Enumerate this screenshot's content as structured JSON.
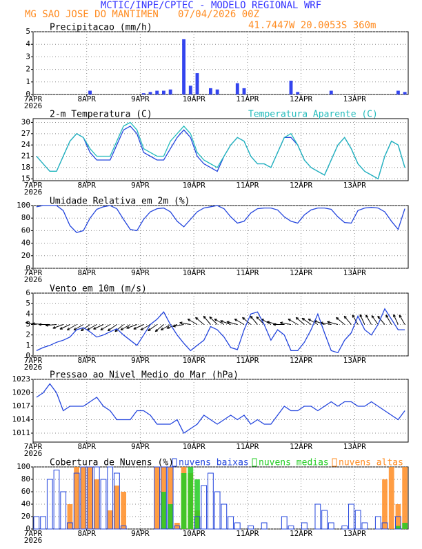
{
  "header": {
    "title": "MCTIC/INPE/CPTEC - MODELO REGIONAL WRF",
    "location": "MG SAO JOSE DO MANTIMEN",
    "run": "07/04/2026 00Z",
    "coords": "41.7447W 20.0053S 360m"
  },
  "chart_data": [
    {
      "type": "bar",
      "title": "Precipitacao (mm/h)",
      "year": "2026",
      "grid": true,
      "color": "#3344ee",
      "categories": [
        "7APR",
        null,
        null,
        null,
        null,
        null,
        null,
        null,
        "8APR",
        null,
        null,
        null,
        null,
        null,
        null,
        null,
        "9APR",
        null,
        null,
        null,
        null,
        null,
        null,
        null,
        "10APR",
        null,
        null,
        null,
        null,
        null,
        null,
        null,
        "11APR",
        null,
        null,
        null,
        null,
        null,
        null,
        null,
        "12APR",
        null,
        null,
        null,
        null,
        null,
        null,
        null,
        "13APR",
        null,
        null,
        null,
        null,
        null,
        null,
        null
      ],
      "values": [
        0,
        0,
        0,
        0,
        0,
        0,
        0,
        0,
        0.3,
        0,
        0,
        0,
        0,
        0,
        0,
        0,
        0.1,
        0.2,
        0.3,
        0.3,
        0.4,
        0,
        4.4,
        0.7,
        1.7,
        0,
        0.5,
        0.4,
        0,
        0,
        0.9,
        0.5,
        0,
        0,
        0,
        0,
        0,
        0,
        1.1,
        0.2,
        0,
        0,
        0,
        0,
        0.3,
        0,
        0,
        0,
        0,
        0,
        0,
        0,
        0,
        0,
        0.3,
        0.2
      ],
      "ylim": [
        0,
        5
      ],
      "yticks": [
        0,
        1,
        2,
        3,
        4,
        5
      ]
    },
    {
      "type": "line",
      "title": "2-m Temperatura (C)",
      "year": "2026",
      "grid": true,
      "categories": [
        "7APR",
        null,
        null,
        null,
        null,
        null,
        null,
        null,
        "8APR",
        null,
        null,
        null,
        null,
        null,
        null,
        null,
        "9APR",
        null,
        null,
        null,
        null,
        null,
        null,
        null,
        "10APR",
        null,
        null,
        null,
        null,
        null,
        null,
        null,
        "11APR",
        null,
        null,
        null,
        null,
        null,
        null,
        null,
        "12APR",
        null,
        null,
        null,
        null,
        null,
        null,
        null,
        "13APR",
        null,
        null,
        null,
        null,
        null,
        null,
        null
      ],
      "series": [
        {
          "color": "#2244dd",
          "values": [
            21,
            19,
            17,
            17,
            21,
            25,
            27,
            26,
            22,
            20,
            20,
            20,
            24,
            28,
            29,
            27,
            22,
            21,
            20,
            20,
            23,
            26,
            28,
            26,
            21,
            19,
            18,
            17,
            21,
            24,
            26,
            25,
            21,
            19,
            19,
            18,
            22,
            26,
            26,
            24,
            20,
            18,
            17,
            16,
            20,
            24,
            26,
            23,
            19,
            17,
            16,
            15,
            21,
            25,
            24,
            18
          ]
        },
        {
          "name": "Temperatura Aparente (C)",
          "color": "#22bbbb",
          "values": [
            21,
            19,
            17,
            17,
            21,
            25,
            27,
            26,
            23,
            21,
            21,
            21,
            25,
            29,
            30,
            28,
            23,
            22,
            21,
            21,
            25,
            27,
            29,
            27,
            22,
            20,
            19,
            18,
            21,
            24,
            26,
            25,
            21,
            19,
            19,
            18,
            22,
            26,
            27,
            24,
            20,
            18,
            17,
            16,
            20,
            24,
            26,
            23,
            19,
            17,
            16,
            15,
            21,
            25,
            24,
            18
          ]
        }
      ],
      "ylim": [
        14.5,
        31
      ],
      "yticks": [
        15,
        18,
        21,
        24,
        27,
        30
      ]
    },
    {
      "type": "line",
      "title": "Umidade Relativa em 2m (%)",
      "year": "2026",
      "grid": true,
      "categories": [
        "7APR",
        null,
        null,
        null,
        null,
        null,
        null,
        null,
        "8APR",
        null,
        null,
        null,
        null,
        null,
        null,
        null,
        "9APR",
        null,
        null,
        null,
        null,
        null,
        null,
        null,
        "10APR",
        null,
        null,
        null,
        null,
        null,
        null,
        null,
        "11APR",
        null,
        null,
        null,
        null,
        null,
        null,
        null,
        "12APR",
        null,
        null,
        null,
        null,
        null,
        null,
        null,
        "13APR",
        null,
        null,
        null,
        null,
        null,
        null,
        null
      ],
      "series": [
        {
          "color": "#2244dd",
          "values": [
            98,
            100,
            100,
            100,
            92,
            68,
            57,
            60,
            80,
            94,
            98,
            100,
            95,
            78,
            62,
            60,
            78,
            90,
            95,
            96,
            90,
            75,
            66,
            78,
            90,
            96,
            98,
            100,
            95,
            82,
            72,
            75,
            88,
            95,
            96,
            96,
            93,
            82,
            75,
            72,
            85,
            93,
            96,
            96,
            94,
            82,
            73,
            72,
            92,
            96,
            97,
            96,
            90,
            75,
            62,
            95
          ]
        }
      ],
      "ylim": [
        0,
        100
      ],
      "yticks": [
        0,
        20,
        40,
        60,
        80,
        100
      ]
    },
    {
      "type": "wind",
      "title": "Vento em 10m (m/s)",
      "year": "2026",
      "grid": true,
      "categories": [
        "7APR",
        null,
        null,
        null,
        null,
        null,
        null,
        null,
        "8APR",
        null,
        null,
        null,
        null,
        null,
        null,
        null,
        "9APR",
        null,
        null,
        null,
        null,
        null,
        null,
        null,
        "10APR",
        null,
        null,
        null,
        null,
        null,
        null,
        null,
        "11APR",
        null,
        null,
        null,
        null,
        null,
        null,
        null,
        "12APR",
        null,
        null,
        null,
        null,
        null,
        null,
        null,
        "13APR",
        null,
        null,
        null,
        null,
        null,
        null,
        null
      ],
      "series": [
        {
          "color": "#2244dd",
          "values": [
            0.5,
            0.8,
            1.0,
            1.3,
            1.5,
            1.8,
            2.5,
            2.7,
            2.3,
            1.8,
            2.0,
            2.3,
            2.6,
            2.0,
            1.5,
            1.0,
            2.0,
            3.0,
            3.5,
            4.2,
            3.0,
            2.0,
            1.2,
            0.5,
            1.0,
            1.5,
            2.8,
            2.5,
            1.8,
            0.8,
            0.6,
            2.5,
            4.0,
            4.2,
            3.0,
            1.5,
            2.5,
            2.0,
            0.5,
            0.5,
            1.3,
            2.5,
            4.0,
            2.2,
            0.5,
            0.3,
            1.5,
            2.2,
            3.8,
            2.5,
            2.0,
            3.0,
            4.5,
            3.5,
            2.5,
            2.5
          ]
        }
      ],
      "directions": [
        280,
        275,
        270,
        265,
        250,
        245,
        240,
        240,
        235,
        240,
        245,
        240,
        235,
        230,
        240,
        250,
        245,
        240,
        235,
        230,
        240,
        250,
        260,
        280,
        300,
        310,
        320,
        315,
        300,
        290,
        285,
        300,
        310,
        320,
        315,
        300,
        285,
        270,
        280,
        300,
        310,
        305,
        300,
        290,
        280,
        285,
        310,
        320,
        330,
        335,
        330,
        325,
        320,
        330,
        335,
        330
      ],
      "ylim": [
        0,
        6
      ],
      "yticks": [
        0,
        1,
        2,
        3,
        4,
        5,
        6
      ]
    },
    {
      "type": "line",
      "title": "Pressao ao Nivel Medio do Mar (hPa)",
      "year": "2026",
      "grid": true,
      "categories": [
        "7APR",
        null,
        null,
        null,
        null,
        null,
        null,
        null,
        "8APR",
        null,
        null,
        null,
        null,
        null,
        null,
        null,
        "9APR",
        null,
        null,
        null,
        null,
        null,
        null,
        null,
        "10APR",
        null,
        null,
        null,
        null,
        null,
        null,
        null,
        "11APR",
        null,
        null,
        null,
        null,
        null,
        null,
        null,
        "12APR",
        null,
        null,
        null,
        null,
        null,
        null,
        null,
        "13APR",
        null,
        null,
        null,
        null,
        null,
        null,
        null
      ],
      "series": [
        {
          "color": "#2244dd",
          "values": [
            1019,
            1020,
            1022,
            1020,
            1016,
            1017,
            1017,
            1017,
            1018,
            1019,
            1017,
            1016,
            1014,
            1014,
            1014,
            1016,
            1016,
            1015,
            1013,
            1013,
            1013,
            1014,
            1011,
            1012,
            1013,
            1015,
            1014,
            1013,
            1014,
            1015,
            1014,
            1015,
            1013,
            1014,
            1013,
            1013,
            1015,
            1017,
            1016,
            1016,
            1017,
            1017,
            1016,
            1017,
            1018,
            1017,
            1018,
            1018,
            1017,
            1017,
            1018,
            1017,
            1016,
            1015,
            1014,
            1016
          ]
        }
      ],
      "ylim": [
        1009,
        1023
      ],
      "yticks": [
        1011,
        1014,
        1017,
        1020,
        1023
      ]
    },
    {
      "type": "bars",
      "title": "Cobertura de Nuvens (%)",
      "year": "2026",
      "grid": true,
      "categories": [
        "7APR",
        null,
        null,
        null,
        null,
        null,
        null,
        null,
        "8APR",
        null,
        null,
        null,
        null,
        null,
        null,
        null,
        "9APR",
        null,
        null,
        null,
        null,
        null,
        null,
        null,
        "10APR",
        null,
        null,
        null,
        null,
        null,
        null,
        null,
        "11APR",
        null,
        null,
        null,
        null,
        null,
        null,
        null,
        "12APR",
        null,
        null,
        null,
        null,
        null,
        null,
        null,
        "13APR",
        null,
        null,
        null,
        null,
        null,
        null,
        null
      ],
      "series": [
        {
          "name": "nuvens baixas",
          "color": "#2244dd",
          "values": [
            20,
            20,
            80,
            95,
            60,
            10,
            90,
            100,
            100,
            100,
            80,
            100,
            90,
            5,
            0,
            0,
            0,
            0,
            100,
            100,
            100,
            5,
            0,
            0,
            20,
            70,
            90,
            60,
            40,
            20,
            10,
            0,
            5,
            0,
            10,
            0,
            0,
            20,
            5,
            0,
            10,
            0,
            40,
            30,
            10,
            0,
            5,
            40,
            30,
            10,
            0,
            20,
            10,
            0,
            20,
            0
          ]
        },
        {
          "name": "nuvens medias",
          "color": "#22cc22",
          "values": [
            0,
            0,
            0,
            0,
            0,
            0,
            0,
            0,
            0,
            0,
            0,
            0,
            0,
            0,
            0,
            0,
            0,
            0,
            0,
            60,
            40,
            0,
            90,
            100,
            80,
            0,
            0,
            0,
            0,
            0,
            0,
            0,
            0,
            0,
            0,
            0,
            0,
            0,
            0,
            0,
            0,
            0,
            0,
            0,
            0,
            0,
            0,
            0,
            0,
            0,
            0,
            0,
            0,
            0,
            5,
            10
          ]
        },
        {
          "name": "nuvens altas",
          "color": "#ff8c22",
          "values": [
            0,
            0,
            0,
            0,
            0,
            40,
            100,
            100,
            100,
            80,
            0,
            30,
            70,
            60,
            0,
            0,
            0,
            0,
            100,
            100,
            100,
            10,
            100,
            90,
            30,
            0,
            0,
            0,
            0,
            0,
            0,
            0,
            0,
            0,
            0,
            0,
            0,
            0,
            0,
            0,
            0,
            0,
            0,
            0,
            0,
            0,
            0,
            0,
            0,
            0,
            0,
            0,
            80,
            100,
            40,
            100
          ]
        }
      ],
      "ylim": [
        0,
        100
      ],
      "yticks": [
        0,
        20,
        40,
        60,
        80,
        100
      ]
    }
  ]
}
